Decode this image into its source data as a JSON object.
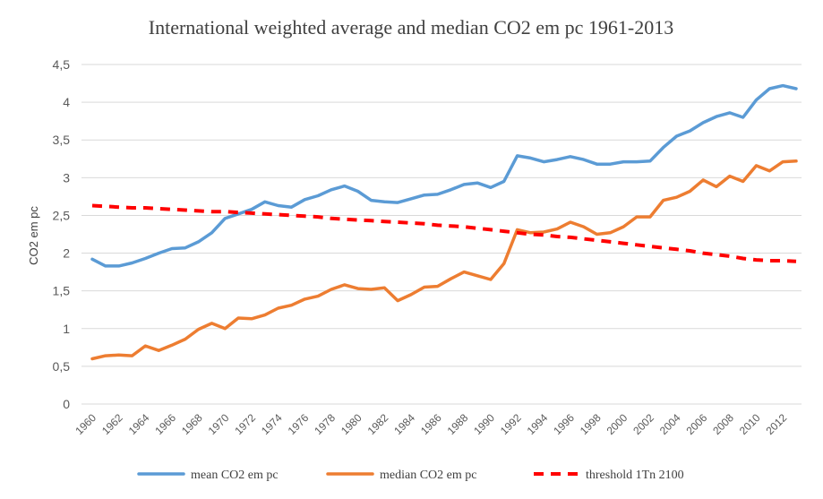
{
  "chart_data": {
    "type": "line",
    "title": "International  weighted  average and median CO2 em pc 1961-2013",
    "ylabel": "CO2 em pc",
    "xlabel": "",
    "ylim": [
      0,
      4.5
    ],
    "yticks": [
      "0",
      "0,5",
      "1",
      "1,5",
      "2",
      "2,5",
      "3",
      "3,5",
      "4",
      "4,5"
    ],
    "ytick_values": [
      0,
      0.5,
      1,
      1.5,
      2,
      2.5,
      3,
      3.5,
      4,
      4.5
    ],
    "xticks": [
      "1960",
      "1962",
      "1964",
      "1966",
      "1968",
      "1970",
      "1972",
      "1974",
      "1976",
      "1978",
      "1980",
      "1982",
      "1984",
      "1986",
      "1988",
      "1990",
      "1992",
      "1994",
      "1996",
      "1998",
      "2000",
      "2002",
      "2004",
      "2006",
      "2008",
      "2010",
      "2012"
    ],
    "grid": true,
    "legend_position": "bottom",
    "x": [
      1960,
      1961,
      1962,
      1963,
      1964,
      1965,
      1966,
      1967,
      1968,
      1969,
      1970,
      1971,
      1972,
      1973,
      1974,
      1975,
      1976,
      1977,
      1978,
      1979,
      1980,
      1981,
      1982,
      1983,
      1984,
      1985,
      1986,
      1987,
      1988,
      1989,
      1990,
      1991,
      1992,
      1993,
      1994,
      1995,
      1996,
      1997,
      1998,
      1999,
      2000,
      2001,
      2002,
      2003,
      2004,
      2005,
      2006,
      2007,
      2008,
      2009,
      2010,
      2011,
      2012,
      2013
    ],
    "series": [
      {
        "name": "mean CO2 em pc",
        "color": "#5b9bd5",
        "style": "solid",
        "values": [
          1.92,
          1.83,
          1.83,
          1.87,
          1.93,
          2.0,
          2.06,
          2.07,
          2.15,
          2.27,
          2.46,
          2.52,
          2.58,
          2.68,
          2.63,
          2.61,
          2.71,
          2.76,
          2.84,
          2.89,
          2.82,
          2.7,
          2.68,
          2.67,
          2.72,
          2.77,
          2.78,
          2.84,
          2.91,
          2.93,
          2.87,
          2.95,
          3.29,
          3.26,
          3.21,
          3.24,
          3.28,
          3.24,
          3.18,
          3.18,
          3.21,
          3.21,
          3.22,
          3.4,
          3.55,
          3.62,
          3.73,
          3.81,
          3.86,
          3.8,
          4.03,
          4.18,
          4.22,
          4.18
        ]
      },
      {
        "name": "median CO2 em pc",
        "color": "#ed7d31",
        "style": "solid",
        "values": [
          0.6,
          0.64,
          0.65,
          0.64,
          0.77,
          0.71,
          0.78,
          0.86,
          0.99,
          1.07,
          1.0,
          1.14,
          1.13,
          1.18,
          1.27,
          1.31,
          1.39,
          1.43,
          1.52,
          1.58,
          1.53,
          1.52,
          1.54,
          1.37,
          1.45,
          1.55,
          1.56,
          1.66,
          1.75,
          1.7,
          1.65,
          1.86,
          2.31,
          2.27,
          2.28,
          2.32,
          2.41,
          2.35,
          2.25,
          2.27,
          2.35,
          2.48,
          2.48,
          2.7,
          2.74,
          2.82,
          2.97,
          2.88,
          3.02,
          2.95,
          3.16,
          3.09,
          3.21,
          3.22
        ]
      },
      {
        "name": "threshold 1Tn 2100",
        "color": "#ff0000",
        "style": "dashed",
        "values": [
          2.63,
          2.62,
          2.61,
          2.6,
          2.6,
          2.59,
          2.58,
          2.57,
          2.56,
          2.55,
          2.55,
          2.54,
          2.53,
          2.52,
          2.51,
          2.5,
          2.49,
          2.48,
          2.46,
          2.45,
          2.44,
          2.43,
          2.42,
          2.41,
          2.4,
          2.39,
          2.37,
          2.36,
          2.35,
          2.33,
          2.31,
          2.29,
          2.27,
          2.25,
          2.24,
          2.22,
          2.21,
          2.19,
          2.17,
          2.15,
          2.13,
          2.11,
          2.09,
          2.07,
          2.05,
          2.03,
          2.0,
          1.98,
          1.96,
          1.93,
          1.91,
          1.9,
          1.9,
          1.89
        ]
      }
    ]
  }
}
